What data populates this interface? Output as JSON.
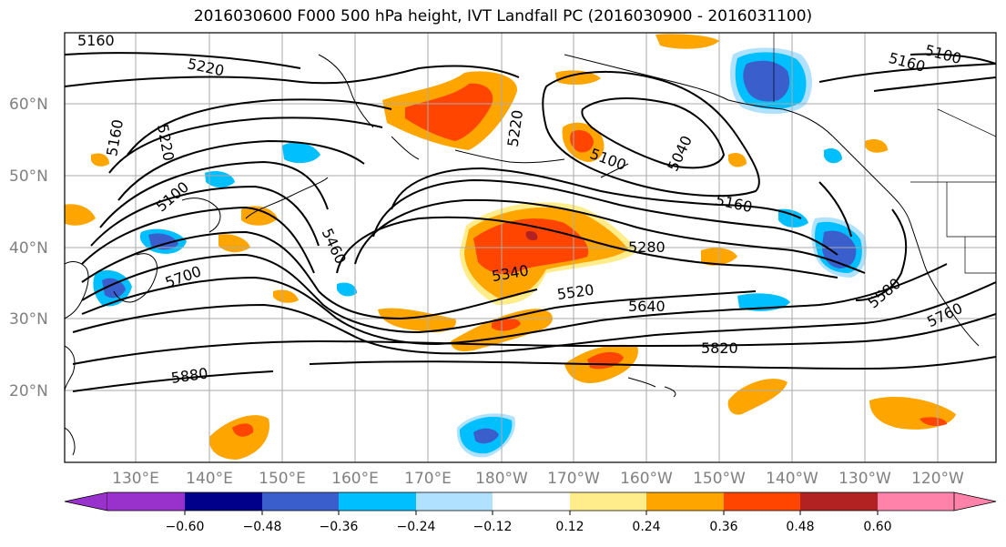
{
  "title": "2016030600 F000 500 hPa height, IVT Landfall PC (2016030900 - 2016031100)",
  "latitude_labels": [
    "60°N",
    "50°N",
    "40°N",
    "30°N",
    "20°N"
  ],
  "longitude_labels": [
    "130°E",
    "140°E",
    "150°E",
    "160°E",
    "170°E",
    "180°W",
    "170°W",
    "160°W",
    "150°W",
    "140°W",
    "130°W",
    "120°W"
  ],
  "contour_labels": [
    "5160",
    "5220",
    "5160",
    "5220",
    "5100",
    "5220",
    "5040",
    "5100",
    "5160",
    "5160",
    "5100",
    "5460",
    "5340",
    "5280",
    "5520",
    "5640",
    "5820",
    "5880",
    "5580",
    "5760",
    "5700"
  ],
  "colorbar": {
    "ticks": [
      "−0.60",
      "−0.48",
      "−0.36",
      "−0.24",
      "−0.12",
      "0.12",
      "0.24",
      "0.36",
      "0.48",
      "0.60"
    ],
    "colors": [
      "#9932cc",
      "#00008b",
      "#3a5fcd",
      "#00bfff",
      "#b0e2ff",
      "#ffffff",
      "#ffec8b",
      "#ffa500",
      "#ff4500",
      "#b22222",
      "#ff82ab"
    ]
  },
  "fill_colors": {
    "orange": "#ffa500",
    "red_orange": "#ff4500",
    "light_yellow": "#ffec8b",
    "cyan": "#00bfff",
    "light_blue": "#b0e2ff",
    "royal_blue": "#3a5fcd",
    "dark_red": "#b22222"
  }
}
